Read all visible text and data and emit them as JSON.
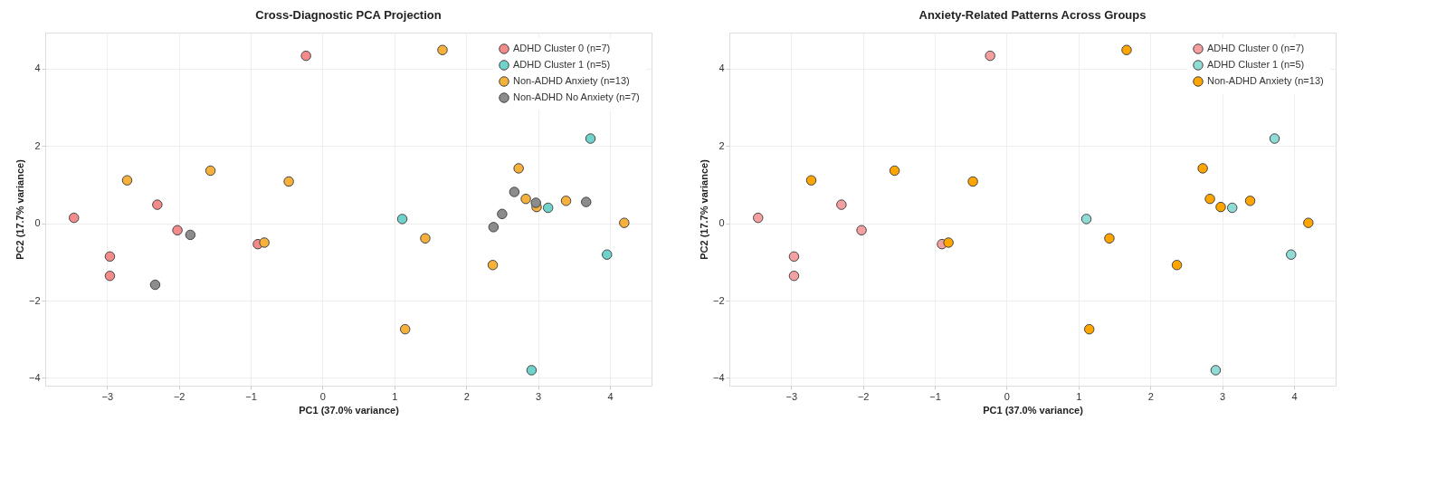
{
  "chart_data": [
    {
      "type": "scatter",
      "title": "Cross-Diagnostic PCA Projection",
      "xlabel": "PC1 (37.0% variance)",
      "ylabel": "PC2 (17.7% variance)",
      "xlim": [
        -3.86,
        4.58
      ],
      "ylim": [
        -4.2,
        4.93
      ],
      "xticks": [
        -3,
        -2,
        -1,
        0,
        1,
        2,
        3,
        4
      ],
      "yticks": [
        -4,
        -2,
        0,
        2,
        4
      ],
      "grid": true,
      "legend": "top right",
      "marker": "circle",
      "series": [
        {
          "name": "ADHD Cluster 0 (n=7)",
          "color": "#f38b8b",
          "x": [
            -3.46,
            -2.96,
            -2.96,
            -2.3,
            -2.02,
            -0.9,
            -0.23
          ],
          "values": [
            0.14,
            -0.86,
            -1.36,
            0.48,
            -0.18,
            -0.54,
            4.33
          ]
        },
        {
          "name": "ADHD Cluster 1 (n=5)",
          "color": "#6fd3cc",
          "x": [
            1.11,
            3.73,
            3.14,
            3.96,
            2.91
          ],
          "values": [
            0.11,
            2.19,
            0.4,
            -0.81,
            -3.8
          ]
        },
        {
          "name": "Non-ADHD Anxiety (n=13)",
          "color": "#f7b03a",
          "x": [
            -2.72,
            -1.56,
            -0.47,
            -0.81,
            1.67,
            2.73,
            2.83,
            2.98,
            3.39,
            4.2,
            1.43,
            2.37,
            1.15
          ],
          "values": [
            1.11,
            1.36,
            1.08,
            -0.5,
            4.48,
            1.42,
            0.63,
            0.42,
            0.58,
            0.01,
            -0.39,
            -1.08,
            -2.74
          ]
        },
        {
          "name": "Non-ADHD No Anxiety (n=7)",
          "color": "#8c8c8c",
          "x": [
            -1.84,
            -2.33,
            2.67,
            2.97,
            3.67,
            2.5,
            2.38
          ],
          "values": [
            -0.3,
            -1.59,
            0.81,
            0.53,
            0.55,
            0.24,
            -0.1
          ]
        }
      ]
    },
    {
      "type": "scatter",
      "title": "Anxiety-Related Patterns Across Groups",
      "xlabel": "PC1 (37.0% variance)",
      "ylabel": "PC2 (17.7% variance)",
      "xlim": [
        -3.86,
        4.58
      ],
      "ylim": [
        -4.2,
        4.93
      ],
      "xticks": [
        -3,
        -2,
        -1,
        0,
        1,
        2,
        3,
        4
      ],
      "yticks": [
        -4,
        -2,
        0,
        2,
        4
      ],
      "grid": true,
      "legend": "top right",
      "marker": "circle",
      "series": [
        {
          "name": "ADHD Cluster 0 (n=7)",
          "color": "#f5a0a0",
          "x": [
            -3.46,
            -2.96,
            -2.96,
            -2.3,
            -2.02,
            -0.9,
            -0.23
          ],
          "values": [
            0.14,
            -0.86,
            -1.36,
            0.48,
            -0.18,
            -0.54,
            4.33
          ]
        },
        {
          "name": "ADHD Cluster 1 (n=5)",
          "color": "#8fdcd6",
          "x": [
            1.11,
            3.73,
            3.14,
            3.96,
            2.91
          ],
          "values": [
            0.11,
            2.19,
            0.4,
            -0.81,
            -3.8
          ]
        },
        {
          "name": "Non-ADHD Anxiety (n=13)",
          "color": "#ffa500",
          "x": [
            -2.72,
            -1.56,
            -0.47,
            -0.81,
            1.67,
            2.73,
            2.83,
            2.98,
            3.39,
            4.2,
            1.43,
            2.37,
            1.15
          ],
          "values": [
            1.11,
            1.36,
            1.08,
            -0.5,
            4.48,
            1.42,
            0.63,
            0.42,
            0.58,
            0.01,
            -0.39,
            -1.08,
            -2.74
          ]
        }
      ]
    }
  ]
}
